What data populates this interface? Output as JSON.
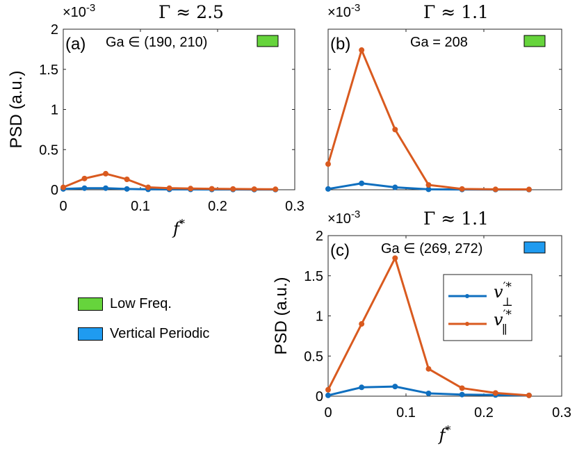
{
  "colors": {
    "low_freq": "#66d43c",
    "vertical_periodic": "#1f9bf0",
    "perp_line": "#0f6fbf",
    "par_line": "#d95a1f"
  },
  "category_legend": {
    "items": [
      {
        "label": "Low Freq.",
        "color": "#66d43c"
      },
      {
        "label": "Vertical Periodic",
        "color": "#1f9bf0"
      }
    ]
  },
  "chart_data": [
    {
      "panel": "a",
      "type": "line",
      "panel_label": "(a)",
      "title_text": "Γ ≈ 2.5",
      "ga_label": "Ga ∈ (190, 210)",
      "ga_swatch": "low_freq",
      "exponent_label": "×10",
      "exponent_sup": "-3",
      "ylabel": "PSD (a.u.)",
      "xlabel": "f",
      "xlabel_sup": "*",
      "xlim": [
        0,
        0.3
      ],
      "ylim": [
        0,
        2
      ],
      "xticks": [
        "0",
        "0.1",
        "0.2",
        "0.3"
      ],
      "xtick_values": [
        0,
        0.1,
        0.2,
        0.3
      ],
      "yticks": [
        "0",
        "0.5",
        "1",
        "1.5",
        "2"
      ],
      "ytick_values": [
        0,
        0.5,
        1,
        1.5,
        2
      ],
      "series": [
        {
          "key": "perp",
          "x": [
            0,
            0.0275,
            0.055,
            0.0825,
            0.11,
            0.1375,
            0.165,
            0.1925,
            0.22,
            0.2475,
            0.275
          ],
          "y": [
            0.01,
            0.02,
            0.02,
            0.01,
            0.005,
            0.004,
            0.004,
            0.003,
            0.003,
            0.002,
            0.002
          ]
        },
        {
          "key": "par",
          "x": [
            0,
            0.0275,
            0.055,
            0.0825,
            0.11,
            0.1375,
            0.165,
            0.1925,
            0.22,
            0.2475,
            0.275
          ],
          "y": [
            0.03,
            0.14,
            0.2,
            0.13,
            0.03,
            0.02,
            0.015,
            0.012,
            0.01,
            0.008,
            0.006
          ]
        }
      ]
    },
    {
      "panel": "b",
      "type": "line",
      "panel_label": "(b)",
      "title_text": "Γ ≈ 1.1",
      "ga_label": "Ga = 208",
      "ga_swatch": "low_freq",
      "exponent_label": "×10",
      "exponent_sup": "-3",
      "xlim": [
        0,
        0.3
      ],
      "ylim": [
        0,
        2
      ],
      "ytick_values": [
        0,
        0.5,
        1,
        1.5,
        2
      ],
      "series": [
        {
          "key": "perp",
          "x": [
            0,
            0.043,
            0.086,
            0.129,
            0.172,
            0.215,
            0.258
          ],
          "y": [
            0.01,
            0.08,
            0.03,
            0.005,
            0.003,
            0.002,
            0.002
          ]
        },
        {
          "key": "par",
          "x": [
            0,
            0.043,
            0.086,
            0.129,
            0.172,
            0.215,
            0.258
          ],
          "y": [
            0.32,
            1.74,
            0.75,
            0.06,
            0.01,
            0.005,
            0.004
          ]
        }
      ]
    },
    {
      "panel": "c",
      "type": "line",
      "panel_label": "(c)",
      "title_text": "Γ ≈ 1.1",
      "ga_label": "Ga ∈ (269, 272)",
      "ga_swatch": "vertical_periodic",
      "exponent_label": "×10",
      "exponent_sup": "-3",
      "ylabel": "PSD (a.u.)",
      "xlabel": "f",
      "xlabel_sup": "*",
      "xlim": [
        0,
        0.3
      ],
      "ylim": [
        0,
        2
      ],
      "xticks": [
        "0",
        "0.1",
        "0.2",
        "0.3"
      ],
      "xtick_values": [
        0,
        0.1,
        0.2,
        0.3
      ],
      "yticks": [
        "0",
        "0.5",
        "1",
        "1.5",
        "2"
      ],
      "ytick_values": [
        0,
        0.5,
        1,
        1.5,
        2
      ],
      "legend": [
        {
          "key": "perp",
          "main": "v",
          "sup": "′*",
          "sub": "⊥"
        },
        {
          "key": "par",
          "main": "v",
          "sup": "′*",
          "sub": "∥"
        }
      ],
      "series": [
        {
          "key": "perp",
          "x": [
            0,
            0.043,
            0.086,
            0.129,
            0.172,
            0.215,
            0.258
          ],
          "y": [
            0.01,
            0.11,
            0.12,
            0.035,
            0.02,
            0.015,
            0.01
          ]
        },
        {
          "key": "par",
          "x": [
            0,
            0.043,
            0.086,
            0.129,
            0.172,
            0.215,
            0.258
          ],
          "y": [
            0.08,
            0.9,
            1.72,
            0.34,
            0.1,
            0.04,
            0.01
          ]
        }
      ]
    }
  ]
}
